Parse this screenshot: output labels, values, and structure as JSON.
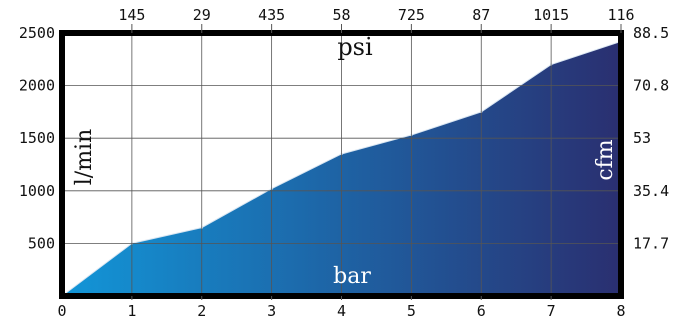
{
  "chart_data": {
    "type": "area",
    "x": [
      0,
      1,
      2,
      3,
      4,
      5,
      6,
      7,
      8
    ],
    "values": [
      0,
      500,
      650,
      1020,
      1350,
      1530,
      1750,
      2200,
      2420
    ],
    "xlim": [
      0,
      8
    ],
    "ylim": [
      0,
      2500
    ],
    "x_ticks": [
      0,
      1,
      2,
      3,
      4,
      5,
      6,
      7,
      8
    ],
    "y_ticks": [
      500,
      1000,
      1500,
      2000,
      2500
    ],
    "top_ticks": [
      "145",
      "29",
      "435",
      "58",
      "725",
      "87",
      "1015",
      "116"
    ],
    "right_ticks": [
      "17.7",
      "35.4",
      "53",
      "70.8",
      "88.5"
    ],
    "xlabel": "bar",
    "ylabel": "l/min",
    "top_label": "psi",
    "right_label": "cfm",
    "grid": true,
    "colors": {
      "fill_start": "#1296d8",
      "fill_end": "#2a2f70",
      "frame": "#000000",
      "grid": "#555555"
    }
  }
}
